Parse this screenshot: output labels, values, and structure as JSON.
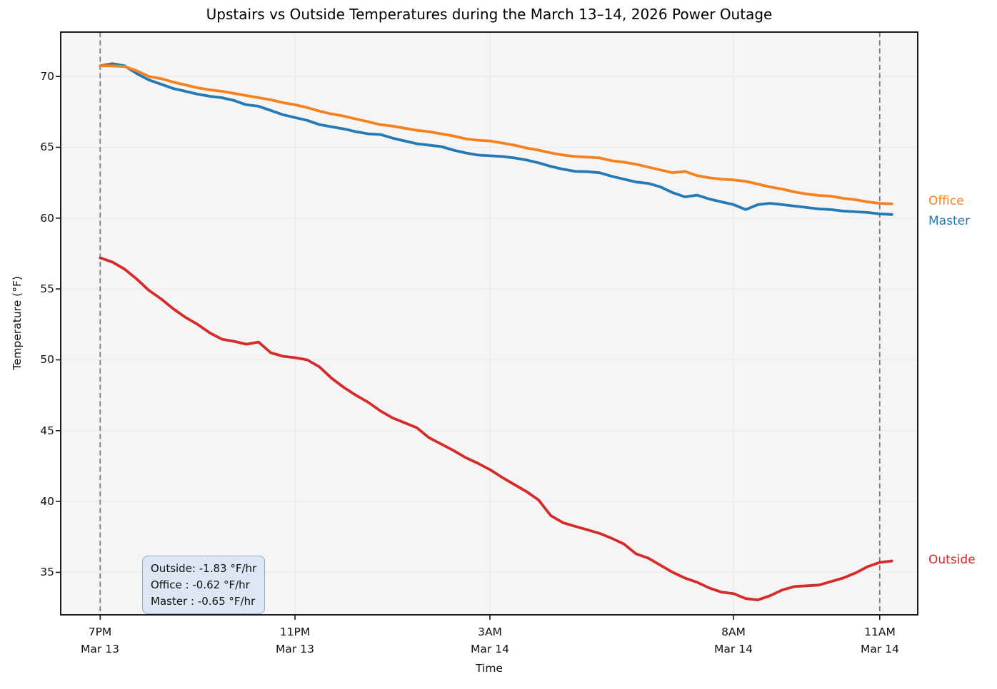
{
  "figure": {
    "title": "Upstairs vs Outside Temperatures during the March 13–14, 2026 Power Outage",
    "background": "#ffffff",
    "plot_background": "#f5f5f5",
    "grid_color": "#e9e9e9",
    "spine_color": "#1a1a1a",
    "outage_line_color": "#7b7b7b"
  },
  "chart_data": {
    "type": "line",
    "title": "Upstairs vs Outside Temperatures during the March 13–14, 2026 Power Outage",
    "xlabel": "Time",
    "ylabel": "Temperature (°F)",
    "grid": true,
    "ylim": [
      32.0,
      73.13
    ],
    "xlim_hours": [
      -0.81,
      16.78
    ],
    "x_ticks": [
      {
        "hours": 0,
        "time": "7PM",
        "date": "Mar 13"
      },
      {
        "hours": 4,
        "time": "11PM",
        "date": "Mar 13"
      },
      {
        "hours": 8,
        "time": "3AM",
        "date": "Mar 14"
      },
      {
        "hours": 13,
        "time": "8AM",
        "date": "Mar 14"
      },
      {
        "hours": 16,
        "time": "11AM",
        "date": "Mar 14"
      }
    ],
    "y_ticks": [
      35,
      40,
      45,
      50,
      55,
      60,
      65,
      70
    ],
    "outage_marker_hours": [
      0,
      16
    ],
    "sample_interval_hours": 0.25,
    "start_time_label": "7PM Mar 13",
    "series": [
      {
        "name": "Master",
        "color": "#2579b5",
        "label_position": "right",
        "values": [
          70.75,
          70.9,
          70.75,
          70.2,
          69.75,
          69.45,
          69.15,
          68.95,
          68.75,
          68.6,
          68.5,
          68.3,
          68.0,
          67.9,
          67.6,
          67.3,
          67.1,
          66.9,
          66.6,
          66.45,
          66.3,
          66.1,
          65.95,
          65.9,
          65.65,
          65.45,
          65.25,
          65.15,
          65.05,
          64.8,
          64.6,
          64.45,
          64.4,
          64.35,
          64.25,
          64.1,
          63.9,
          63.65,
          63.45,
          63.3,
          63.28,
          63.2,
          62.95,
          62.75,
          62.55,
          62.45,
          62.2,
          61.8,
          61.5,
          61.62,
          61.35,
          61.15,
          60.95,
          60.6,
          60.95,
          61.05,
          60.95,
          60.85,
          60.75,
          60.65,
          60.6,
          60.5,
          60.45,
          60.4,
          60.3,
          60.25
        ]
      },
      {
        "name": "Office",
        "color": "#f5821f",
        "label_position": "right",
        "values": [
          70.75,
          70.75,
          70.7,
          70.4,
          70.0,
          69.85,
          69.6,
          69.4,
          69.2,
          69.05,
          68.95,
          68.8,
          68.65,
          68.5,
          68.35,
          68.15,
          68.0,
          67.8,
          67.55,
          67.35,
          67.2,
          67.0,
          66.8,
          66.6,
          66.5,
          66.35,
          66.2,
          66.1,
          65.95,
          65.8,
          65.6,
          65.5,
          65.45,
          65.3,
          65.15,
          64.95,
          64.8,
          64.6,
          64.45,
          64.35,
          64.3,
          64.25,
          64.05,
          63.95,
          63.8,
          63.6,
          63.4,
          63.2,
          63.3,
          63.0,
          62.85,
          62.75,
          62.7,
          62.6,
          62.4,
          62.2,
          62.05,
          61.85,
          61.7,
          61.6,
          61.55,
          61.4,
          61.3,
          61.15,
          61.05,
          61.0
        ]
      },
      {
        "name": "Outside",
        "color": "#d62b2b",
        "label_position": "right",
        "values": [
          57.2,
          56.9,
          56.4,
          55.7,
          54.9,
          54.3,
          53.6,
          53.0,
          52.5,
          51.9,
          51.45,
          51.3,
          51.1,
          51.25,
          50.5,
          50.25,
          50.15,
          50.0,
          49.5,
          48.7,
          48.05,
          47.5,
          47.0,
          46.4,
          45.9,
          45.55,
          45.2,
          44.5,
          44.05,
          43.6,
          43.1,
          42.7,
          42.25,
          41.7,
          41.2,
          40.7,
          40.1,
          39.0,
          38.5,
          38.25,
          38.0,
          37.75,
          37.4,
          37.0,
          36.3,
          36.0,
          35.5,
          35.0,
          34.6,
          34.3,
          33.9,
          33.6,
          33.5,
          33.15,
          33.05,
          33.35,
          33.75,
          34.0,
          34.05,
          34.1,
          34.35,
          34.6,
          34.95,
          35.4,
          35.7,
          35.8
        ]
      }
    ],
    "annotation": {
      "lines": [
        "Outside: -1.83 °F/hr",
        "Office : -0.62 °F/hr",
        "Master : -0.65 °F/hr"
      ],
      "rates_f_per_hr": {
        "Outside": -1.83,
        "Office": -0.62,
        "Master": -0.65
      }
    },
    "series_labels": {
      "office": "Office",
      "master": "Master",
      "outside": "Outside"
    }
  }
}
